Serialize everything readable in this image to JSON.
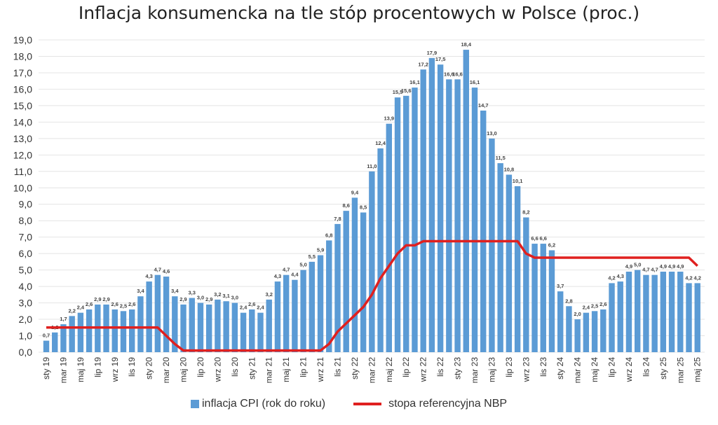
{
  "chart_data": {
    "type": "bar",
    "title": "Inflacja konsumencka na tle stóp procentowych w Polsce (proc.)",
    "xlabel": "",
    "ylabel": "",
    "ylim": [
      0,
      19
    ],
    "yticks": [
      "0,0",
      "1,0",
      "2,0",
      "3,0",
      "4,0",
      "5,0",
      "6,0",
      "7,0",
      "8,0",
      "9,0",
      "10,0",
      "11,0",
      "12,0",
      "13,0",
      "14,0",
      "15,0",
      "16,0",
      "17,0",
      "18,0",
      "19,0"
    ],
    "grid": true,
    "legend_position": "bottom",
    "xtick_labels": [
      "sty 19",
      "mar 19",
      "maj 19",
      "lip 19",
      "wrz 19",
      "lis 19",
      "sty 20",
      "mar 20",
      "maj 20",
      "lip 20",
      "wrz 20",
      "lis 20",
      "sty 21",
      "mar 21",
      "maj 21",
      "lip 21",
      "wrz 21",
      "lis 21",
      "sty 22",
      "mar 22",
      "maj 22",
      "lip 22",
      "wrz 22",
      "lis 22",
      "sty 23",
      "mar 23",
      "maj 23",
      "lip 23",
      "wrz 23",
      "lis 23",
      "sty 24",
      "mar 24",
      "maj 24",
      "lip 24",
      "wrz 24",
      "lis 24",
      "sty 25",
      "mar 25",
      "maj 25"
    ],
    "series": [
      {
        "name": "inflacja CPI (rok do roku)",
        "type": "bar",
        "color": "#5b9bd5",
        "values": [
          0.7,
          1.2,
          1.7,
          2.2,
          2.4,
          2.6,
          2.9,
          2.9,
          2.6,
          2.5,
          2.6,
          3.4,
          4.3,
          4.7,
          4.6,
          3.4,
          2.9,
          3.3,
          3.0,
          2.9,
          3.2,
          3.1,
          3.0,
          2.4,
          2.6,
          2.4,
          3.2,
          4.3,
          4.7,
          4.4,
          5.0,
          5.5,
          5.9,
          6.8,
          7.8,
          8.6,
          9.4,
          8.5,
          11.0,
          12.4,
          13.9,
          15.5,
          15.6,
          16.1,
          17.2,
          17.9,
          17.5,
          16.6,
          16.6,
          18.4,
          16.1,
          14.7,
          13.0,
          11.5,
          10.8,
          10.1,
          8.2,
          6.6,
          6.6,
          6.2,
          3.7,
          2.8,
          2.0,
          2.4,
          2.5,
          2.6,
          4.2,
          4.3,
          4.9,
          5.0,
          4.7,
          4.7,
          4.9,
          4.9,
          4.9,
          4.2,
          4.2
        ]
      },
      {
        "name": "stopa referencyjna NBP",
        "type": "line",
        "color": "#e0201f",
        "values": [
          1.5,
          1.5,
          1.5,
          1.5,
          1.5,
          1.5,
          1.5,
          1.5,
          1.5,
          1.5,
          1.5,
          1.5,
          1.5,
          1.5,
          1.0,
          0.5,
          0.1,
          0.1,
          0.1,
          0.1,
          0.1,
          0.1,
          0.1,
          0.1,
          0.1,
          0.1,
          0.1,
          0.1,
          0.1,
          0.1,
          0.1,
          0.1,
          0.1,
          0.5,
          1.25,
          1.75,
          2.25,
          2.75,
          3.5,
          4.5,
          5.25,
          6.0,
          6.5,
          6.5,
          6.75,
          6.75,
          6.75,
          6.75,
          6.75,
          6.75,
          6.75,
          6.75,
          6.75,
          6.75,
          6.75,
          6.75,
          6.0,
          5.75,
          5.75,
          5.75,
          5.75,
          5.75,
          5.75,
          5.75,
          5.75,
          5.75,
          5.75,
          5.75,
          5.75,
          5.75,
          5.75,
          5.75,
          5.75,
          5.75,
          5.75,
          5.75,
          5.25
        ]
      }
    ]
  }
}
